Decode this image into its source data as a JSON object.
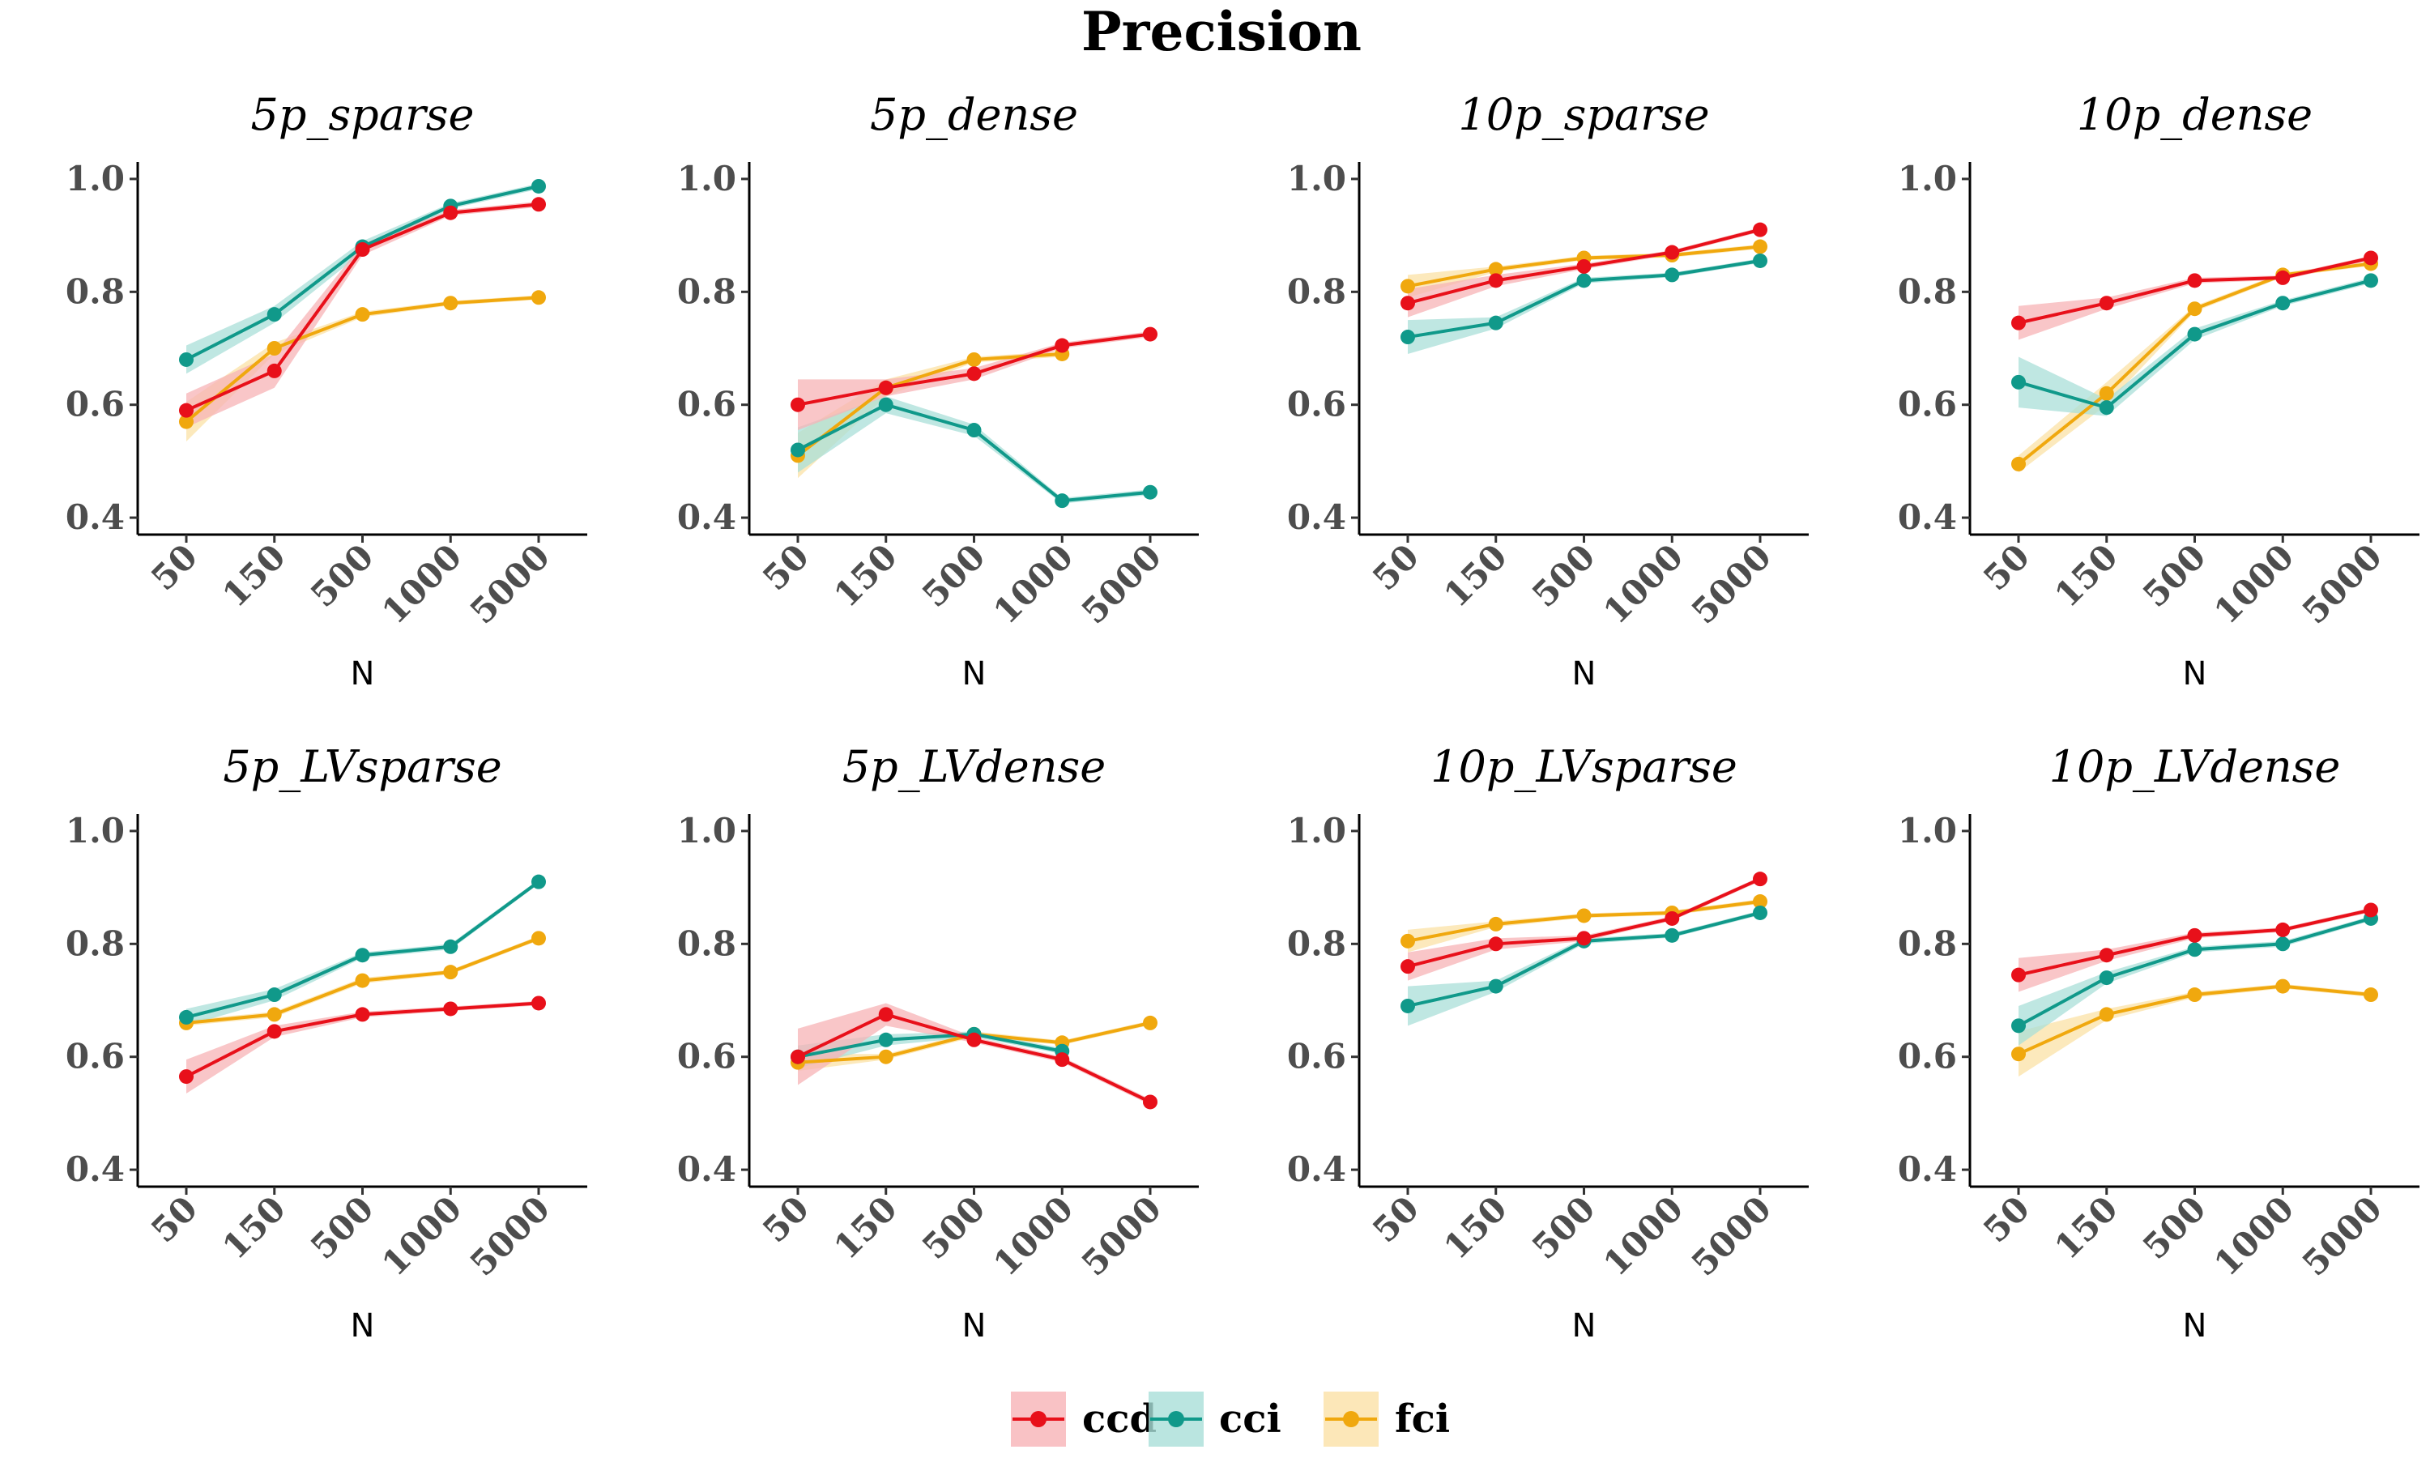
{
  "chart_data": {
    "type": "line",
    "title": "Precision",
    "facet_layout": "2x4",
    "x_categories": [
      "50",
      "150",
      "500",
      "1000",
      "5000"
    ],
    "xlabel": "N",
    "ylabel": "",
    "ylim": [
      0.37,
      1.03
    ],
    "yticks": [
      0.4,
      0.6,
      0.8,
      1.0
    ],
    "ytick_labels": [
      "0.4",
      "0.6",
      "0.8",
      "1.0"
    ],
    "grid": false,
    "legend_position": "bottom",
    "series_names": [
      "ccd",
      "cci",
      "fci"
    ],
    "colors": {
      "ccd": "#e8101a",
      "cci": "#10998a",
      "fci": "#f0a80e"
    },
    "ribbon_colors": {
      "ccd": "#f7b3b6",
      "cci": "#a9dfd8",
      "fci": "#fbe1a6"
    },
    "panels": [
      {
        "title": "5p_sparse",
        "series": [
          {
            "name": "ccd",
            "values": [
              0.59,
              0.66,
              0.875,
              0.94,
              0.955
            ],
            "lower": [
              0.56,
              0.63,
              0.865,
              0.935,
              0.95
            ],
            "upper": [
              0.62,
              0.69,
              0.885,
              0.945,
              0.96
            ]
          },
          {
            "name": "cci",
            "values": [
              0.68,
              0.76,
              0.88,
              0.952,
              0.987
            ],
            "lower": [
              0.655,
              0.745,
              0.87,
              0.947,
              0.982
            ],
            "upper": [
              0.705,
              0.775,
              0.89,
              0.957,
              0.992
            ]
          },
          {
            "name": "fci",
            "values": [
              0.57,
              0.7,
              0.76,
              0.78,
              0.79
            ],
            "lower": [
              0.535,
              0.69,
              0.755,
              0.776,
              0.786
            ],
            "upper": [
              0.605,
              0.71,
              0.765,
              0.784,
              0.794
            ]
          }
        ]
      },
      {
        "title": "5p_dense",
        "series": [
          {
            "name": "ccd",
            "values": [
              0.6,
              0.63,
              0.655,
              0.705,
              0.725
            ],
            "lower": [
              0.555,
              0.615,
              0.645,
              0.7,
              0.72
            ],
            "upper": [
              0.645,
              0.645,
              0.665,
              0.71,
              0.73
            ]
          },
          {
            "name": "cci",
            "values": [
              0.52,
              0.6,
              0.555,
              0.43,
              0.445
            ],
            "lower": [
              0.48,
              0.585,
              0.545,
              0.425,
              0.44
            ],
            "upper": [
              0.56,
              0.615,
              0.565,
              0.435,
              0.45
            ]
          },
          {
            "name": "fci",
            "values": [
              0.51,
              0.63,
              0.68,
              0.69,
              null
            ],
            "lower": [
              0.47,
              0.615,
              0.675,
              0.685,
              null
            ],
            "upper": [
              0.55,
              0.645,
              0.685,
              0.695,
              null
            ]
          }
        ]
      },
      {
        "title": "10p_sparse",
        "series": [
          {
            "name": "ccd",
            "values": [
              0.78,
              0.82,
              0.845,
              0.87,
              0.91
            ],
            "lower": [
              0.755,
              0.81,
              0.84,
              0.866,
              0.906
            ],
            "upper": [
              0.805,
              0.83,
              0.85,
              0.874,
              0.914
            ]
          },
          {
            "name": "cci",
            "values": [
              0.72,
              0.745,
              0.82,
              0.83,
              0.855
            ],
            "lower": [
              0.69,
              0.735,
              0.815,
              0.826,
              0.851
            ],
            "upper": [
              0.75,
              0.755,
              0.825,
              0.834,
              0.859
            ]
          },
          {
            "name": "fci",
            "values": [
              0.81,
              0.84,
              0.86,
              0.865,
              0.88
            ],
            "lower": [
              0.79,
              0.835,
              0.856,
              0.861,
              0.876
            ],
            "upper": [
              0.83,
              0.845,
              0.864,
              0.869,
              0.884
            ]
          }
        ]
      },
      {
        "title": "10p_dense",
        "series": [
          {
            "name": "ccd",
            "values": [
              0.745,
              0.78,
              0.82,
              0.825,
              0.86
            ],
            "lower": [
              0.715,
              0.77,
              0.815,
              0.821,
              0.856
            ],
            "upper": [
              0.775,
              0.79,
              0.825,
              0.829,
              0.864
            ]
          },
          {
            "name": "cci",
            "values": [
              0.64,
              0.595,
              0.725,
              0.78,
              0.82
            ],
            "lower": [
              0.595,
              0.58,
              0.715,
              0.775,
              0.815
            ],
            "upper": [
              0.685,
              0.61,
              0.735,
              0.785,
              0.825
            ]
          },
          {
            "name": "fci",
            "values": [
              0.495,
              0.62,
              0.77,
              0.83,
              0.85
            ],
            "lower": [
              0.48,
              0.6,
              0.765,
              0.826,
              0.846
            ],
            "upper": [
              0.51,
              0.64,
              0.775,
              0.834,
              0.854
            ]
          }
        ]
      },
      {
        "title": "5p_LVsparse",
        "series": [
          {
            "name": "ccd",
            "values": [
              0.565,
              0.645,
              0.675,
              0.685,
              0.695
            ],
            "lower": [
              0.535,
              0.635,
              0.67,
              0.681,
              0.691
            ],
            "upper": [
              0.595,
              0.655,
              0.68,
              0.689,
              0.699
            ]
          },
          {
            "name": "cci",
            "values": [
              0.67,
              0.71,
              0.78,
              0.795,
              0.91
            ],
            "lower": [
              0.655,
              0.7,
              0.775,
              0.79,
              0.906
            ],
            "upper": [
              0.685,
              0.72,
              0.785,
              0.8,
              0.914
            ]
          },
          {
            "name": "fci",
            "values": [
              0.66,
              0.675,
              0.735,
              0.75,
              0.81
            ],
            "lower": [
              0.655,
              0.67,
              0.73,
              0.746,
              0.806
            ],
            "upper": [
              0.665,
              0.68,
              0.74,
              0.754,
              0.814
            ]
          }
        ]
      },
      {
        "title": "5p_LVdense",
        "series": [
          {
            "name": "ccd",
            "values": [
              0.6,
              0.675,
              0.63,
              0.595,
              0.52
            ],
            "lower": [
              0.55,
              0.655,
              0.625,
              0.59,
              0.515
            ],
            "upper": [
              0.65,
              0.695,
              0.635,
              0.6,
              0.525
            ]
          },
          {
            "name": "cci",
            "values": [
              0.6,
              0.63,
              0.64,
              0.61,
              null
            ],
            "lower": [
              0.58,
              0.62,
              0.635,
              0.605,
              null
            ],
            "upper": [
              0.62,
              0.64,
              0.645,
              0.615,
              null
            ]
          },
          {
            "name": "fci",
            "values": [
              0.59,
              0.6,
              0.64,
              0.625,
              0.66
            ],
            "lower": [
              0.575,
              0.595,
              0.635,
              0.621,
              0.656
            ],
            "upper": [
              0.605,
              0.605,
              0.645,
              0.629,
              0.664
            ]
          }
        ]
      },
      {
        "title": "10p_LVsparse",
        "series": [
          {
            "name": "ccd",
            "values": [
              0.76,
              0.8,
              0.81,
              0.845,
              0.915
            ],
            "lower": [
              0.735,
              0.79,
              0.805,
              0.841,
              0.911
            ],
            "upper": [
              0.785,
              0.81,
              0.815,
              0.849,
              0.919
            ]
          },
          {
            "name": "cci",
            "values": [
              0.69,
              0.725,
              0.805,
              0.815,
              0.855
            ],
            "lower": [
              0.655,
              0.715,
              0.8,
              0.811,
              0.851
            ],
            "upper": [
              0.725,
              0.735,
              0.81,
              0.819,
              0.859
            ]
          },
          {
            "name": "fci",
            "values": [
              0.805,
              0.835,
              0.85,
              0.855,
              0.875
            ],
            "lower": [
              0.785,
              0.83,
              0.846,
              0.851,
              0.871
            ],
            "upper": [
              0.825,
              0.84,
              0.854,
              0.859,
              0.879
            ]
          }
        ]
      },
      {
        "title": "10p_LVdense",
        "series": [
          {
            "name": "ccd",
            "values": [
              0.745,
              0.78,
              0.815,
              0.825,
              0.86
            ],
            "lower": [
              0.715,
              0.77,
              0.81,
              0.821,
              0.856
            ],
            "upper": [
              0.775,
              0.79,
              0.82,
              0.829,
              0.864
            ]
          },
          {
            "name": "cci",
            "values": [
              0.655,
              0.74,
              0.79,
              0.8,
              0.845
            ],
            "lower": [
              0.62,
              0.73,
              0.785,
              0.795,
              0.841
            ],
            "upper": [
              0.69,
              0.75,
              0.795,
              0.805,
              0.849
            ]
          },
          {
            "name": "fci",
            "values": [
              0.605,
              0.675,
              0.71,
              0.725,
              0.71
            ],
            "lower": [
              0.565,
              0.665,
              0.705,
              0.721,
              0.706
            ],
            "upper": [
              0.645,
              0.685,
              0.715,
              0.729,
              0.714
            ]
          }
        ]
      }
    ]
  }
}
